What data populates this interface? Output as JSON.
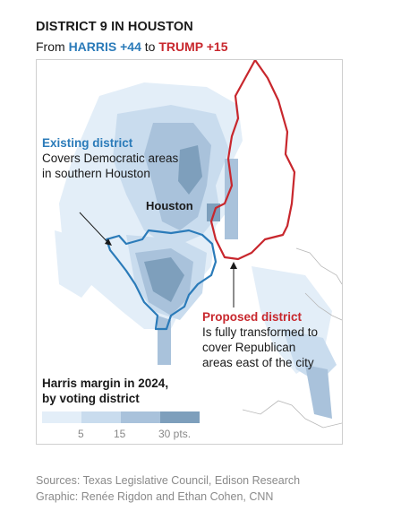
{
  "header": {
    "title": "DISTRICT 9 IN HOUSTON",
    "subtitle_prefix": "From ",
    "harris_label": "HARRIS +44",
    "subtitle_mid": " to ",
    "trump_label": "TRUMP +15"
  },
  "map": {
    "city_label": "Houston",
    "existing": {
      "title": "Existing district",
      "line1": "Covers Democratic areas",
      "line2": "in southern Houston"
    },
    "proposed": {
      "title": "Proposed district",
      "line1": "Is fully transformed to",
      "line2": "cover Republican",
      "line3": "areas east of the city"
    },
    "colors": {
      "existing_outline": "#2b7bb9",
      "proposed_outline": "#c8272d"
    }
  },
  "legend": {
    "title_line1": "Harris margin in 2024,",
    "title_line2": "by voting district",
    "colors": [
      "#e3eef8",
      "#c9dcee",
      "#a9c2db",
      "#7e9fbc"
    ],
    "ticks": [
      "5",
      "15",
      "30 pts."
    ]
  },
  "footer": {
    "sources": "Sources: Texas Legislative Council, Edison Research",
    "credit": "Graphic: Renée Rigdon and Ethan Cohen, CNN"
  }
}
